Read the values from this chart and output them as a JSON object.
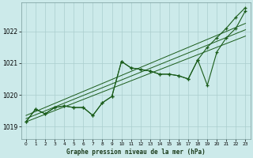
{
  "title": "Graphe pression niveau de la mer (hPa)",
  "background_color": "#cceaea",
  "grid_color": "#aacece",
  "line_color": "#1a5c1a",
  "xlim": [
    -0.5,
    23.5
  ],
  "ylim": [
    1018.6,
    1022.9
  ],
  "xticks": [
    0,
    1,
    2,
    3,
    4,
    5,
    6,
    7,
    8,
    9,
    10,
    11,
    12,
    13,
    14,
    15,
    16,
    17,
    18,
    19,
    20,
    21,
    22,
    23
  ],
  "yticks": [
    1019,
    1020,
    1021,
    1022
  ],
  "series_main": [
    1019.15,
    1019.55,
    1019.4,
    1019.6,
    1019.65,
    1019.6,
    1019.6,
    1019.35,
    1019.75,
    1019.95,
    1021.05,
    1020.85,
    1020.8,
    1020.75,
    1020.65,
    1020.65,
    1020.6,
    1020.5,
    1021.1,
    1020.3,
    1021.35,
    1021.8,
    1022.1,
    1022.65
  ],
  "series_high": [
    1019.15,
    1019.55,
    1019.4,
    1019.6,
    1019.65,
    1019.6,
    1019.6,
    1019.35,
    1019.75,
    1019.95,
    1021.05,
    1020.85,
    1020.8,
    1020.75,
    1020.65,
    1020.65,
    1020.6,
    1020.5,
    1021.1,
    1021.5,
    1021.8,
    1022.1,
    1022.45,
    1022.75
  ],
  "trend_lines": [
    {
      "x": [
        0,
        23
      ],
      "y": [
        1019.15,
        1021.85
      ]
    },
    {
      "x": [
        0,
        23
      ],
      "y": [
        1019.25,
        1022.05
      ]
    },
    {
      "x": [
        0,
        23
      ],
      "y": [
        1019.35,
        1022.25
      ]
    }
  ]
}
